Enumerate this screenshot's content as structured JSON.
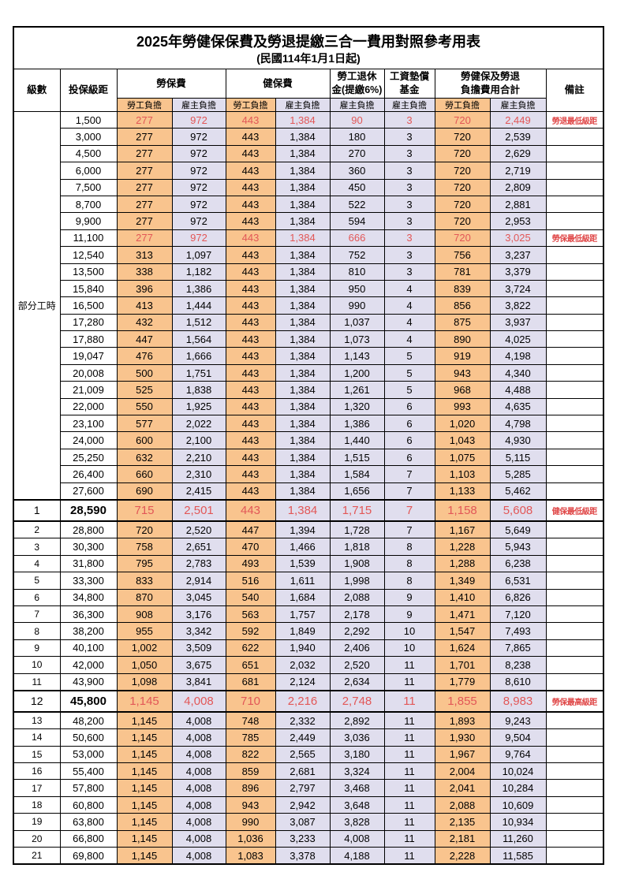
{
  "title": "2025年勞健保保費及勞退提繳三合一費用對照參考用表",
  "subtitle": "(民國114年1月1日起)",
  "colors": {
    "labor_share_bg": "#F9C48E",
    "employer_share_bg": "#E0DEEE",
    "highlight_value_text": "#E25757",
    "note_text": "#E04A4A",
    "border": "#000000"
  },
  "header": {
    "level": "級數",
    "salary_bracket": "投保級距",
    "labor_insurance": "勞保費",
    "health_insurance": "健保費",
    "pension": "勞工退休\n金(提繳6%)",
    "wage_fund": "工資墊償\n基金",
    "total": "勞健保及勞退\n負擔費用合計",
    "note": "備註",
    "labor_share": "勞工負擔",
    "employer_share": "雇主負擔"
  },
  "part_time_label": "部分工時",
  "part_time_span": 23,
  "rows": [
    {
      "salary": "1,500",
      "v": [
        "277",
        "972",
        "443",
        "1,384",
        "90",
        "3",
        "720",
        "2,449"
      ],
      "note": "勞退最低級距",
      "red": true
    },
    {
      "salary": "3,000",
      "v": [
        "277",
        "972",
        "443",
        "1,384",
        "180",
        "3",
        "720",
        "2,539"
      ],
      "note": ""
    },
    {
      "salary": "4,500",
      "v": [
        "277",
        "972",
        "443",
        "1,384",
        "270",
        "3",
        "720",
        "2,629"
      ],
      "note": ""
    },
    {
      "salary": "6,000",
      "v": [
        "277",
        "972",
        "443",
        "1,384",
        "360",
        "3",
        "720",
        "2,719"
      ],
      "note": ""
    },
    {
      "salary": "7,500",
      "v": [
        "277",
        "972",
        "443",
        "1,384",
        "450",
        "3",
        "720",
        "2,809"
      ],
      "note": ""
    },
    {
      "salary": "8,700",
      "v": [
        "277",
        "972",
        "443",
        "1,384",
        "522",
        "3",
        "720",
        "2,881"
      ],
      "note": ""
    },
    {
      "salary": "9,900",
      "v": [
        "277",
        "972",
        "443",
        "1,384",
        "594",
        "3",
        "720",
        "2,953"
      ],
      "note": ""
    },
    {
      "salary": "11,100",
      "v": [
        "277",
        "972",
        "443",
        "1,384",
        "666",
        "3",
        "720",
        "3,025"
      ],
      "note": "勞保最低級距",
      "red": true
    },
    {
      "salary": "12,540",
      "v": [
        "313",
        "1,097",
        "443",
        "1,384",
        "752",
        "3",
        "756",
        "3,237"
      ],
      "note": ""
    },
    {
      "salary": "13,500",
      "v": [
        "338",
        "1,182",
        "443",
        "1,384",
        "810",
        "3",
        "781",
        "3,379"
      ],
      "note": ""
    },
    {
      "salary": "15,840",
      "v": [
        "396",
        "1,386",
        "443",
        "1,384",
        "950",
        "4",
        "839",
        "3,724"
      ],
      "note": ""
    },
    {
      "salary": "16,500",
      "v": [
        "413",
        "1,444",
        "443",
        "1,384",
        "990",
        "4",
        "856",
        "3,822"
      ],
      "note": ""
    },
    {
      "salary": "17,280",
      "v": [
        "432",
        "1,512",
        "443",
        "1,384",
        "1,037",
        "4",
        "875",
        "3,937"
      ],
      "note": ""
    },
    {
      "salary": "17,880",
      "v": [
        "447",
        "1,564",
        "443",
        "1,384",
        "1,073",
        "4",
        "890",
        "4,025"
      ],
      "note": ""
    },
    {
      "salary": "19,047",
      "v": [
        "476",
        "1,666",
        "443",
        "1,384",
        "1,143",
        "5",
        "919",
        "4,198"
      ],
      "note": ""
    },
    {
      "salary": "20,008",
      "v": [
        "500",
        "1,751",
        "443",
        "1,384",
        "1,200",
        "5",
        "943",
        "4,340"
      ],
      "note": ""
    },
    {
      "salary": "21,009",
      "v": [
        "525",
        "1,838",
        "443",
        "1,384",
        "1,261",
        "5",
        "968",
        "4,488"
      ],
      "note": ""
    },
    {
      "salary": "22,000",
      "v": [
        "550",
        "1,925",
        "443",
        "1,384",
        "1,320",
        "6",
        "993",
        "4,635"
      ],
      "note": ""
    },
    {
      "salary": "23,100",
      "v": [
        "577",
        "2,022",
        "443",
        "1,384",
        "1,386",
        "6",
        "1,020",
        "4,798"
      ],
      "note": ""
    },
    {
      "salary": "24,000",
      "v": [
        "600",
        "2,100",
        "443",
        "1,384",
        "1,440",
        "6",
        "1,043",
        "4,930"
      ],
      "note": ""
    },
    {
      "salary": "25,250",
      "v": [
        "632",
        "2,210",
        "443",
        "1,384",
        "1,515",
        "6",
        "1,075",
        "5,115"
      ],
      "note": ""
    },
    {
      "salary": "26,400",
      "v": [
        "660",
        "2,310",
        "443",
        "1,384",
        "1,584",
        "7",
        "1,103",
        "5,285"
      ],
      "note": ""
    },
    {
      "salary": "27,600",
      "v": [
        "690",
        "2,415",
        "443",
        "1,384",
        "1,656",
        "7",
        "1,133",
        "5,462"
      ],
      "note": ""
    },
    {
      "lv": "1",
      "salary": "28,590",
      "v": [
        "715",
        "2,501",
        "443",
        "1,384",
        "1,715",
        "7",
        "1,158",
        "5,608"
      ],
      "note": "健保最低級距",
      "red": true,
      "big": true
    },
    {
      "lv": "2",
      "salary": "28,800",
      "v": [
        "720",
        "2,520",
        "447",
        "1,394",
        "1,728",
        "7",
        "1,167",
        "5,649"
      ],
      "note": ""
    },
    {
      "lv": "3",
      "salary": "30,300",
      "v": [
        "758",
        "2,651",
        "470",
        "1,466",
        "1,818",
        "8",
        "1,228",
        "5,943"
      ],
      "note": ""
    },
    {
      "lv": "4",
      "salary": "31,800",
      "v": [
        "795",
        "2,783",
        "493",
        "1,539",
        "1,908",
        "8",
        "1,288",
        "6,238"
      ],
      "note": ""
    },
    {
      "lv": "5",
      "salary": "33,300",
      "v": [
        "833",
        "2,914",
        "516",
        "1,611",
        "1,998",
        "8",
        "1,349",
        "6,531"
      ],
      "note": ""
    },
    {
      "lv": "6",
      "salary": "34,800",
      "v": [
        "870",
        "3,045",
        "540",
        "1,684",
        "2,088",
        "9",
        "1,410",
        "6,826"
      ],
      "note": ""
    },
    {
      "lv": "7",
      "salary": "36,300",
      "v": [
        "908",
        "3,176",
        "563",
        "1,757",
        "2,178",
        "9",
        "1,471",
        "7,120"
      ],
      "note": ""
    },
    {
      "lv": "8",
      "salary": "38,200",
      "v": [
        "955",
        "3,342",
        "592",
        "1,849",
        "2,292",
        "10",
        "1,547",
        "7,493"
      ],
      "note": ""
    },
    {
      "lv": "9",
      "salary": "40,100",
      "v": [
        "1,002",
        "3,509",
        "622",
        "1,940",
        "2,406",
        "10",
        "1,624",
        "7,865"
      ],
      "note": ""
    },
    {
      "lv": "10",
      "salary": "42,000",
      "v": [
        "1,050",
        "3,675",
        "651",
        "2,032",
        "2,520",
        "11",
        "1,701",
        "8,238"
      ],
      "note": ""
    },
    {
      "lv": "11",
      "salary": "43,900",
      "v": [
        "1,098",
        "3,841",
        "681",
        "2,124",
        "2,634",
        "11",
        "1,779",
        "8,610"
      ],
      "note": ""
    },
    {
      "lv": "12",
      "salary": "45,800",
      "v": [
        "1,145",
        "4,008",
        "710",
        "2,216",
        "2,748",
        "11",
        "1,855",
        "8,983"
      ],
      "note": "勞保最高級距",
      "red": true,
      "big": true
    },
    {
      "lv": "13",
      "salary": "48,200",
      "v": [
        "1,145",
        "4,008",
        "748",
        "2,332",
        "2,892",
        "11",
        "1,893",
        "9,243"
      ],
      "note": ""
    },
    {
      "lv": "14",
      "salary": "50,600",
      "v": [
        "1,145",
        "4,008",
        "785",
        "2,449",
        "3,036",
        "11",
        "1,930",
        "9,504"
      ],
      "note": ""
    },
    {
      "lv": "15",
      "salary": "53,000",
      "v": [
        "1,145",
        "4,008",
        "822",
        "2,565",
        "3,180",
        "11",
        "1,967",
        "9,764"
      ],
      "note": ""
    },
    {
      "lv": "16",
      "salary": "55,400",
      "v": [
        "1,145",
        "4,008",
        "859",
        "2,681",
        "3,324",
        "11",
        "2,004",
        "10,024"
      ],
      "note": ""
    },
    {
      "lv": "17",
      "salary": "57,800",
      "v": [
        "1,145",
        "4,008",
        "896",
        "2,797",
        "3,468",
        "11",
        "2,041",
        "10,284"
      ],
      "note": ""
    },
    {
      "lv": "18",
      "salary": "60,800",
      "v": [
        "1,145",
        "4,008",
        "943",
        "2,942",
        "3,648",
        "11",
        "2,088",
        "10,609"
      ],
      "note": ""
    },
    {
      "lv": "19",
      "salary": "63,800",
      "v": [
        "1,145",
        "4,008",
        "990",
        "3,087",
        "3,828",
        "11",
        "2,135",
        "10,934"
      ],
      "note": ""
    },
    {
      "lv": "20",
      "salary": "66,800",
      "v": [
        "1,145",
        "4,008",
        "1,036",
        "3,233",
        "4,008",
        "11",
        "2,181",
        "11,260"
      ],
      "note": ""
    },
    {
      "lv": "21",
      "salary": "69,800",
      "v": [
        "1,145",
        "4,008",
        "1,083",
        "3,378",
        "4,188",
        "11",
        "2,228",
        "11,585"
      ],
      "note": ""
    }
  ]
}
